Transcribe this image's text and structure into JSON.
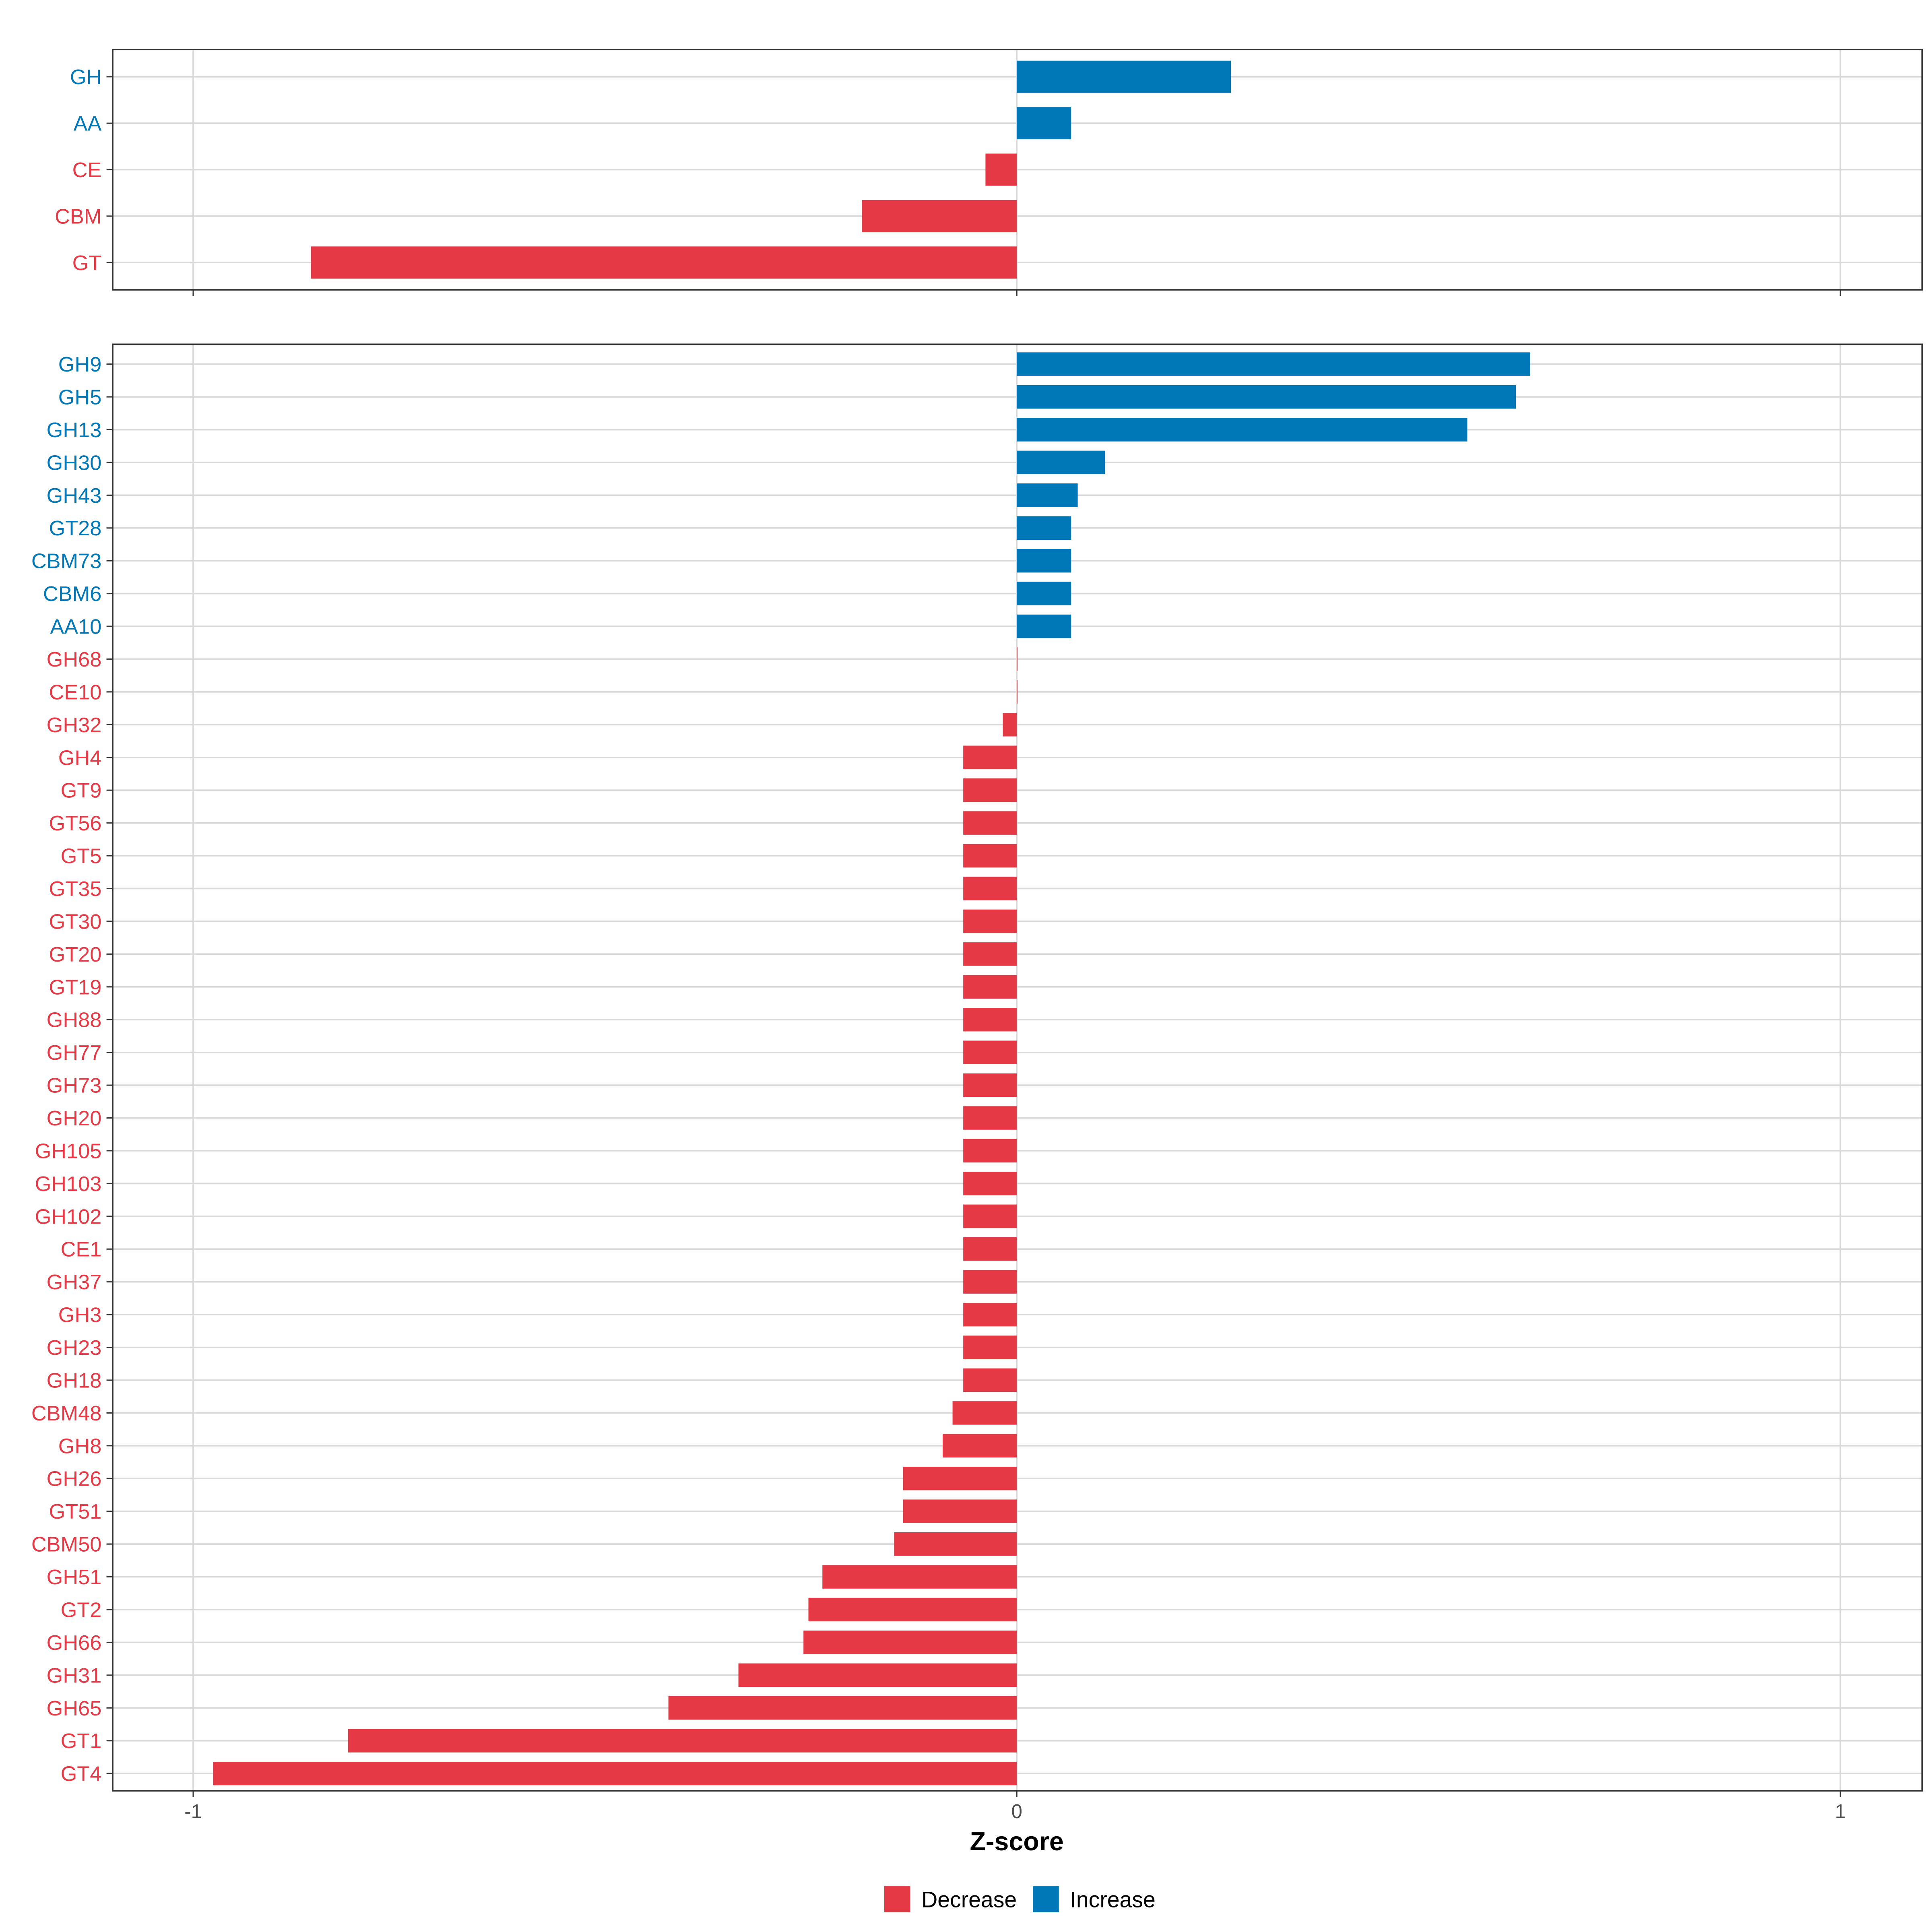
{
  "chart_data": {
    "type": "bar",
    "orientation": "horizontal",
    "xlabel": "Z-score",
    "xlim": [
      -1.1,
      1.1
    ],
    "x_ticks": [
      "-1",
      "0",
      "1"
    ],
    "x_tick_values": [
      -1,
      0,
      1
    ],
    "grid": true,
    "legend": {
      "placement": "bottom",
      "entries": [
        {
          "label": "Decrease",
          "color": "#E63946"
        },
        {
          "label": "Increase",
          "color": "#0077B6"
        }
      ]
    },
    "panels": [
      {
        "name": "class-level",
        "categories": [
          "GH",
          "AA",
          "CE",
          "CBM",
          "GT"
        ],
        "values": [
          0.26,
          0.066,
          -0.038,
          -0.188,
          -0.857
        ],
        "direction": [
          "Increase",
          "Increase",
          "Decrease",
          "Decrease",
          "Decrease"
        ]
      },
      {
        "name": "family-level",
        "categories": [
          "GH9",
          "GH5",
          "GH13",
          "GH30",
          "GH43",
          "GT28",
          "CBM73",
          "CBM6",
          "AA10",
          "GH68",
          "CE10",
          "GH32",
          "GH4",
          "GT9",
          "GT56",
          "GT5",
          "GT35",
          "GT30",
          "GT20",
          "GT19",
          "GH88",
          "GH77",
          "GH73",
          "GH20",
          "GH105",
          "GH103",
          "GH102",
          "CE1",
          "GH37",
          "GH3",
          "GH23",
          "GH18",
          "CBM48",
          "GH8",
          "GH26",
          "GT51",
          "CBM50",
          "GH51",
          "GT2",
          "GH66",
          "GH31",
          "GH65",
          "GT1",
          "GT4"
        ],
        "values": [
          0.623,
          0.606,
          0.547,
          0.107,
          0.074,
          0.066,
          0.066,
          0.066,
          0.066,
          0,
          0,
          -0.017,
          -0.065,
          -0.065,
          -0.065,
          -0.065,
          -0.065,
          -0.065,
          -0.065,
          -0.065,
          -0.065,
          -0.065,
          -0.065,
          -0.065,
          -0.065,
          -0.065,
          -0.065,
          -0.065,
          -0.065,
          -0.065,
          -0.065,
          -0.065,
          -0.078,
          -0.09,
          -0.138,
          -0.138,
          -0.149,
          -0.236,
          -0.253,
          -0.259,
          -0.338,
          -0.423,
          -0.812,
          -0.976
        ],
        "direction": [
          "Increase",
          "Increase",
          "Increase",
          "Increase",
          "Increase",
          "Increase",
          "Increase",
          "Increase",
          "Increase",
          "Decrease",
          "Decrease",
          "Decrease",
          "Decrease",
          "Decrease",
          "Decrease",
          "Decrease",
          "Decrease",
          "Decrease",
          "Decrease",
          "Decrease",
          "Decrease",
          "Decrease",
          "Decrease",
          "Decrease",
          "Decrease",
          "Decrease",
          "Decrease",
          "Decrease",
          "Decrease",
          "Decrease",
          "Decrease",
          "Decrease",
          "Decrease",
          "Decrease",
          "Decrease",
          "Decrease",
          "Decrease",
          "Decrease",
          "Decrease",
          "Decrease",
          "Decrease",
          "Decrease",
          "Decrease",
          "Decrease"
        ]
      }
    ]
  }
}
